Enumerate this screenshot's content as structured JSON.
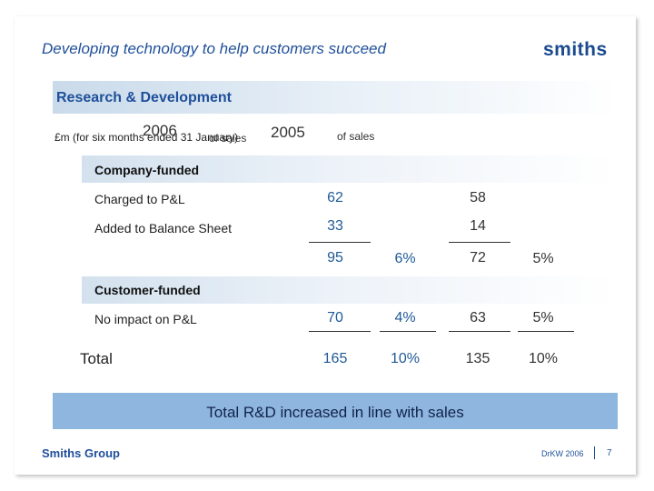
{
  "header": {
    "title": "Developing technology to help customers succeed",
    "logo": "smiths"
  },
  "section": {
    "title": "Research & Development",
    "unit_label": "£m (for six months ended 31 January)",
    "year_current": "2006",
    "of_sales_current": "of sales",
    "year_prior": "2005",
    "of_sales_prior": "of sales"
  },
  "company_funded": {
    "label": "Company-funded",
    "rows": [
      {
        "label": "Charged to P&L",
        "v2006": "62",
        "v2005": "58"
      },
      {
        "label": "Added to Balance Sheet",
        "v2006": "33",
        "v2005": "14"
      }
    ],
    "subtotal": {
      "v2006": "95",
      "pct2006": "6%",
      "v2005": "72",
      "pct2005": "5%"
    }
  },
  "customer_funded": {
    "label": "Customer-funded",
    "row": {
      "label": "No impact on P&L",
      "v2006": "70",
      "pct2006": "4%",
      "v2005": "63",
      "pct2005": "5%"
    }
  },
  "total": {
    "label": "Total",
    "v2006": "165",
    "pct2006": "10%",
    "v2005": "135",
    "pct2005": "10%"
  },
  "conclusion": "Total R&D increased in line with sales",
  "footer": {
    "company": "Smiths Group",
    "code": "DrKW 2006",
    "page": "7"
  },
  "colors": {
    "accent": "#1f4f9a",
    "band": "#8fb6de"
  }
}
